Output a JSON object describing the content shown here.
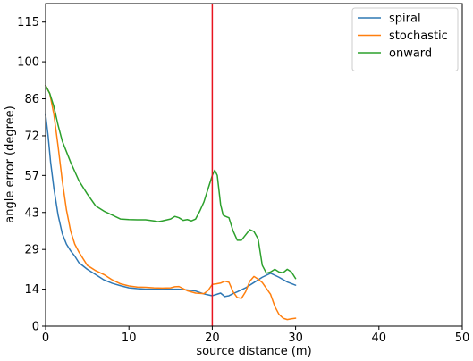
{
  "chart_data": {
    "type": "line",
    "xlabel": "source distance (m)",
    "ylabel": "angle error (degree)",
    "xlim": [
      0,
      50
    ],
    "ylim": [
      0,
      122
    ],
    "xticks": [
      0,
      10,
      20,
      30,
      40,
      50
    ],
    "yticks": [
      0,
      14,
      29,
      43,
      57,
      72,
      86,
      100,
      115
    ],
    "grid": false,
    "legend_position": "top-right",
    "vline": {
      "x": 20,
      "color": "#e8141f"
    },
    "series": [
      {
        "name": "spiral",
        "color": "#2f78b4",
        "x": [
          0,
          0.3,
          0.6,
          1.0,
          1.5,
          2.0,
          2.5,
          3.0,
          3.5,
          4.0,
          5.0,
          6.0,
          7.0,
          8.0,
          9.0,
          10.0,
          11.0,
          12.0,
          13.0,
          14.0,
          15.0,
          16.0,
          17.0,
          18.0,
          19.0,
          20.0,
          20.5,
          21.0,
          21.5,
          22.0,
          22.5,
          23.0,
          24.0,
          25.0,
          26.0,
          27.0,
          28.0,
          29.0,
          30.0
        ],
        "y": [
          80,
          72,
          62,
          52,
          42,
          35,
          31,
          28.5,
          26.5,
          24,
          21.5,
          19.5,
          17.5,
          16.2,
          15.3,
          14.5,
          14.2,
          14.0,
          14.0,
          14.1,
          14.0,
          14.0,
          13.7,
          13.3,
          12.2,
          11.5,
          12.0,
          12.5,
          11.2,
          11.5,
          12.3,
          13.0,
          14.5,
          16.5,
          18.5,
          20.0,
          18.5,
          16.7,
          15.5
        ]
      },
      {
        "name": "stochastic",
        "color": "#ff7f0e",
        "x": [
          0,
          0.5,
          1.0,
          1.5,
          2.0,
          2.5,
          3.0,
          3.5,
          4.0,
          5.0,
          6.0,
          7.0,
          8.0,
          9.0,
          10.0,
          11.0,
          12.0,
          13.0,
          14.0,
          15.0,
          15.5,
          16.0,
          17.0,
          18.0,
          19.0,
          19.5,
          20.0,
          20.5,
          21.0,
          21.5,
          22.0,
          22.5,
          23.0,
          23.5,
          24.0,
          24.5,
          25.0,
          25.5,
          26.0,
          27.0,
          27.5,
          28.0,
          28.5,
          29.0,
          29.5,
          30.0
        ],
        "y": [
          91,
          88,
          80,
          68,
          55,
          44,
          36,
          31,
          28,
          23,
          21,
          19.5,
          17.5,
          16,
          15.2,
          14.8,
          14.7,
          14.5,
          14.4,
          14.5,
          14.9,
          15.0,
          13.4,
          12.5,
          12.3,
          13.5,
          15.8,
          16.0,
          16.3,
          17.0,
          16.6,
          13.0,
          10.8,
          10.5,
          13.0,
          17.0,
          18.8,
          17.8,
          16.5,
          12.0,
          7.5,
          4.5,
          3.0,
          2.5,
          2.8,
          3.0
        ]
      },
      {
        "name": "onward",
        "color": "#2ca02c",
        "x": [
          0,
          0.5,
          1.0,
          1.5,
          2.0,
          2.5,
          3.0,
          4.0,
          5.0,
          6.0,
          7.0,
          8.0,
          9.0,
          10.0,
          11.0,
          12.0,
          13.0,
          13.5,
          14.0,
          15.0,
          15.5,
          16.0,
          16.5,
          17.0,
          17.5,
          18.0,
          18.5,
          19.0,
          19.5,
          20.0,
          20.3,
          20.6,
          21.0,
          21.3,
          21.6,
          22.0,
          22.5,
          23.0,
          23.5,
          24.0,
          24.5,
          25.0,
          25.5,
          26.0,
          26.5,
          27.0,
          27.5,
          28.0,
          28.5,
          29.0,
          29.5,
          30.0
        ],
        "y": [
          91,
          88,
          83,
          76,
          70,
          66,
          62,
          55,
          50,
          45.5,
          43.5,
          42,
          40.5,
          40.3,
          40.2,
          40.2,
          39.8,
          39.5,
          39.8,
          40.5,
          41.5,
          41.0,
          40.0,
          40.3,
          39.8,
          40.5,
          43.5,
          47,
          52,
          57,
          59,
          57,
          46,
          42,
          41.5,
          41.0,
          36,
          32.5,
          32.5,
          34.5,
          36.5,
          35.8,
          33,
          23,
          20,
          20.5,
          21.5,
          20.5,
          20.2,
          21.5,
          20.5,
          18
        ]
      }
    ]
  }
}
